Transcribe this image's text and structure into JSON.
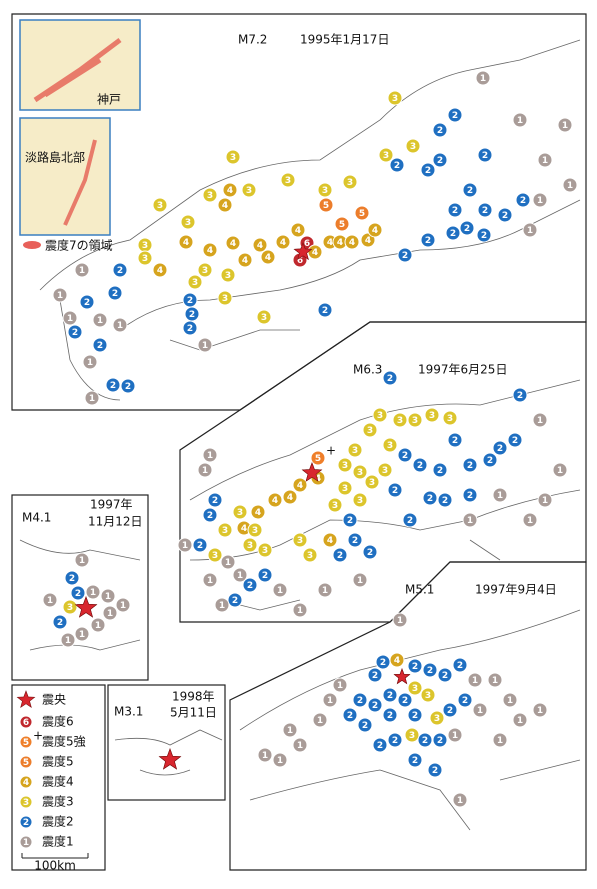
{
  "inset_kobe": {
    "label": "神戸"
  },
  "inset_awaji": {
    "label": "淡路島北部"
  },
  "area_legend": {
    "label": "震度7の領域"
  },
  "legend": {
    "epicenter": "震央",
    "items": [
      {
        "symbol": "6",
        "label": "震度6",
        "color": "#c0282d"
      },
      {
        "symbol": "5",
        "sup": "+",
        "label": "震度5強",
        "color": "#ef7f2a"
      },
      {
        "symbol": "5",
        "label": "震度5",
        "color": "#ec7d2b"
      },
      {
        "symbol": "4",
        "label": "震度4",
        "color": "#d6a41e"
      },
      {
        "symbol": "3",
        "label": "震度3",
        "color": "#dcc52c"
      },
      {
        "symbol": "2",
        "label": "震度2",
        "color": "#1f6fc1"
      },
      {
        "symbol": "1",
        "label": "震度1",
        "color": "#a99c98"
      }
    ],
    "scale": "100km"
  },
  "panels": [
    {
      "magnitude": "M7.2",
      "date": "1995年1月17日",
      "markers": [
        "6",
        "6",
        "4",
        "4",
        "4",
        "4",
        "4",
        "4",
        "5",
        "5",
        "5",
        "3",
        "4",
        "4",
        "4",
        "4",
        "4",
        "4",
        "4",
        "4",
        "3",
        "3",
        "4",
        "3",
        "4",
        "3",
        "3",
        "3",
        "3",
        "4",
        "3",
        "3",
        "3",
        "3",
        "3",
        "3",
        "3",
        "3",
        "3",
        "3",
        "2",
        "2",
        "2",
        "2",
        "2",
        "2",
        "2",
        "2",
        "2",
        "2",
        "2",
        "2",
        "2",
        "2",
        "2",
        "2",
        "2",
        "2",
        "2",
        "2",
        "2",
        "2",
        "2",
        "2",
        "2",
        "2",
        "2",
        "1",
        "1",
        "1",
        "1",
        "1",
        "1",
        "1",
        "1",
        "1",
        "1",
        "1",
        "1",
        "1",
        "1",
        "1"
      ]
    },
    {
      "magnitude": "M6.3",
      "date": "1997年6月25日",
      "markers": [
        "2",
        {
          "symbol": "5",
          "sup": "+"
        },
        "4",
        "4",
        "4",
        "4",
        "4",
        "4",
        "3",
        "3",
        "3",
        "2",
        "2",
        "2",
        "3",
        "3",
        "3",
        "2",
        "2",
        "2",
        "1",
        "1",
        "1",
        "1",
        "1",
        "1",
        "1",
        "3",
        "3",
        "4",
        "3",
        "3",
        "3",
        "3",
        "3",
        "3",
        "3",
        "3",
        "3",
        "3",
        "3",
        "3",
        "3",
        "2",
        "2",
        "2",
        "2",
        "3",
        "3",
        "2",
        "2",
        "2",
        "2",
        "2",
        "2",
        "2",
        "2",
        "2",
        "1",
        "1",
        "1",
        "1",
        "2",
        "2",
        "2",
        "2",
        "2",
        "1",
        "1",
        "1",
        "1",
        "1",
        "1"
      ]
    },
    {
      "magnitude": "M4.1",
      "date": "1997年",
      "date2": "11月12日",
      "markers": [
        "3",
        "2",
        "2",
        "2",
        "1",
        "1",
        "1",
        "1",
        "1",
        "1",
        "1",
        "1",
        "1"
      ]
    },
    {
      "magnitude": "M5.1",
      "date": "1997年9月4日",
      "markers": [
        "4",
        "2",
        "2",
        "2",
        "2",
        "2",
        "2",
        "1",
        "3",
        "3",
        "2",
        "2",
        "2",
        "2",
        "2",
        "2",
        "2",
        "2",
        "3",
        "2",
        "2",
        "1",
        "3",
        "2",
        "2",
        "1",
        "2",
        "2",
        "2",
        "2",
        "1",
        "1",
        "1",
        "1",
        "1",
        "1",
        "1",
        "1",
        "1",
        "1",
        "1",
        "1",
        "1",
        "1"
      ]
    },
    {
      "magnitude": "M3.1",
      "date": "1998年",
      "date2": "5月11日"
    }
  ]
}
